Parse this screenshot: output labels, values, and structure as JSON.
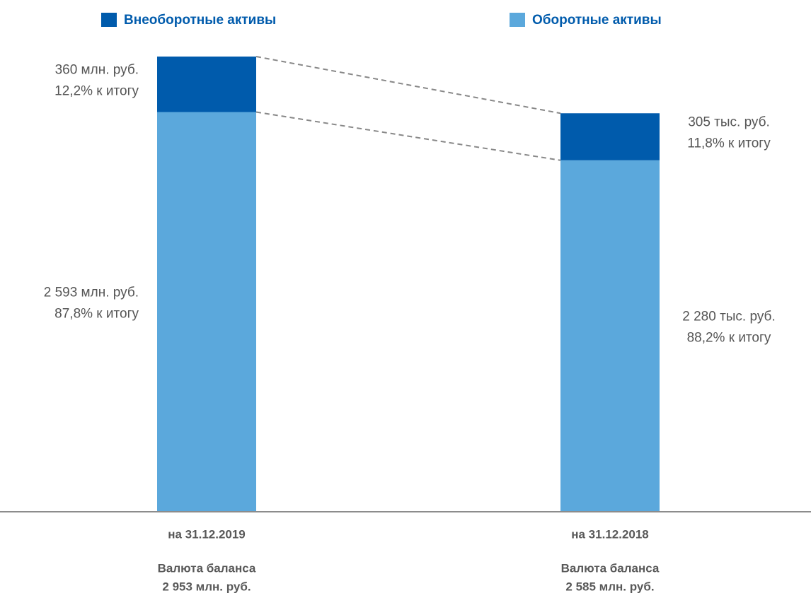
{
  "chart_data": {
    "type": "stacked_bar",
    "categories": [
      "на 31.12.2019",
      "на 31.12.2018"
    ],
    "series": [
      {
        "name": "Внеоборотные активы",
        "color": "#005bac",
        "values": [
          360,
          305
        ],
        "value_labels": [
          "360 млн. руб.",
          "305 тыс. руб."
        ],
        "share_labels": [
          "12,2% к итогу",
          "11,8% к итогу"
        ]
      },
      {
        "name": "Оборотные активы",
        "color": "#5ba8dc",
        "values": [
          2593,
          2280
        ],
        "value_labels": [
          "2  593 млн. руб.",
          "2  280 тыс. руб."
        ],
        "share_labels": [
          "87,8% к итогу",
          "88,2% к итогу"
        ]
      }
    ],
    "totals": [
      {
        "title": "Валюта баланса",
        "label": "2 953 млн. руб."
      },
      {
        "title": "Валюта баланса",
        "label": "2 585 млн. руб."
      }
    ],
    "ylim": [
      0,
      2953
    ]
  }
}
